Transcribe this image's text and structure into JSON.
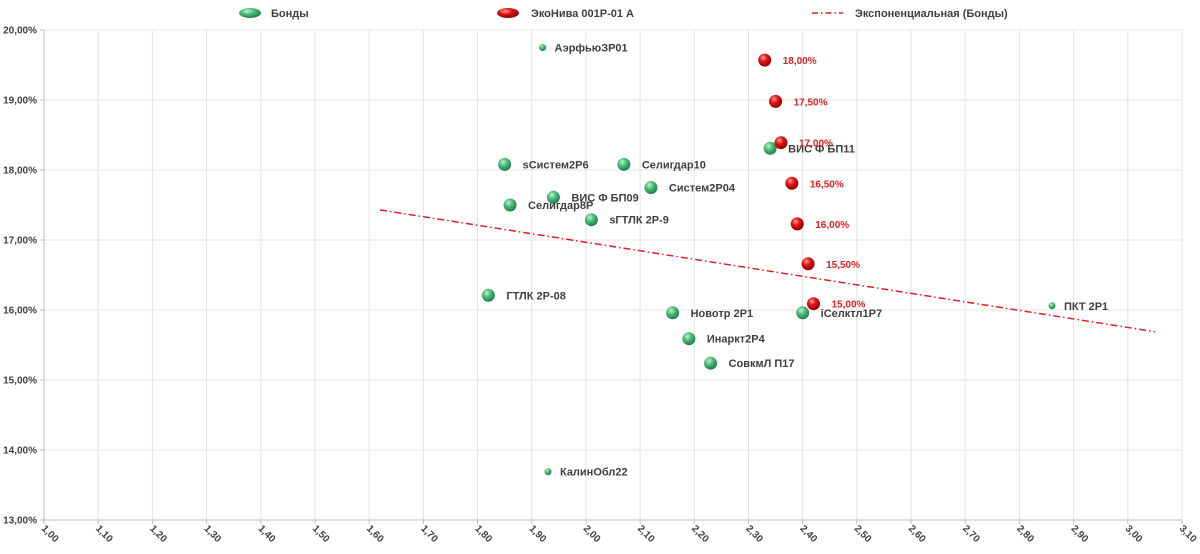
{
  "chart_data": {
    "type": "scatter",
    "x_range": [
      1.0,
      3.1
    ],
    "y_range": [
      13.0,
      20.0
    ],
    "x_ticks": [
      "1,00",
      "1,10",
      "1,20",
      "1,30",
      "1,40",
      "1,50",
      "1,60",
      "1,70",
      "1,80",
      "1,90",
      "2,00",
      "2,10",
      "2,20",
      "2,30",
      "2,40",
      "2,50",
      "2,60",
      "2,70",
      "2,80",
      "2,90",
      "3,00",
      "3,10"
    ],
    "y_ticks": [
      "13,00%",
      "14,00%",
      "15,00%",
      "16,00%",
      "17,00%",
      "18,00%",
      "19,00%",
      "20,00%"
    ],
    "legend": {
      "bonds": "Бонды",
      "ekoniva": "ЭкоНива 001Р-01 А",
      "trend": "Экспоненциальная (Бонды)"
    },
    "colors": {
      "green": "#3fae6a",
      "red": "#d40000",
      "trend": "#e02020"
    },
    "series": [
      {
        "name": "Бонды",
        "points": [
          {
            "x": 1.92,
            "y": 19.75,
            "label": "АэрфьюЗР01",
            "small": true
          },
          {
            "x": 1.85,
            "y": 18.08,
            "label": "sСистем2Р6"
          },
          {
            "x": 2.07,
            "y": 18.08,
            "label": "Селигдар10"
          },
          {
            "x": 2.34,
            "y": 18.31,
            "label": "ВИС Ф БП11"
          },
          {
            "x": 2.12,
            "y": 17.75,
            "label": "Систем2Р04"
          },
          {
            "x": 1.94,
            "y": 17.61,
            "label": "ВИС Ф БП09"
          },
          {
            "x": 1.86,
            "y": 17.5,
            "label": "Селигдар8Р"
          },
          {
            "x": 2.01,
            "y": 17.29,
            "label": "sГТЛК 2Р-9"
          },
          {
            "x": 1.82,
            "y": 16.21,
            "label": "ГТЛК 2Р-08"
          },
          {
            "x": 2.16,
            "y": 15.96,
            "label": "Новотр 2Р1"
          },
          {
            "x": 2.4,
            "y": 15.96,
            "label": "iСелктл1Р7"
          },
          {
            "x": 2.19,
            "y": 15.59,
            "label": "Инаркт2Р4"
          },
          {
            "x": 2.23,
            "y": 15.24,
            "label": "СовкмЛ П17"
          },
          {
            "x": 2.86,
            "y": 16.06,
            "label": "ПКТ 2Р1",
            "small": true
          },
          {
            "x": 1.93,
            "y": 13.69,
            "label": "КалинОбл22",
            "small": true
          }
        ]
      },
      {
        "name": "ЭкоНива 001Р-01 А",
        "points": [
          {
            "x": 2.33,
            "y": 19.57,
            "label": "18,00%"
          },
          {
            "x": 2.35,
            "y": 18.98,
            "label": "17,50%"
          },
          {
            "x": 2.36,
            "y": 18.39,
            "label": "17,00%"
          },
          {
            "x": 2.38,
            "y": 17.81,
            "label": "16,50%"
          },
          {
            "x": 2.39,
            "y": 17.23,
            "label": "16,00%"
          },
          {
            "x": 2.41,
            "y": 16.66,
            "label": "15,50%"
          },
          {
            "x": 2.42,
            "y": 16.09,
            "label": "15,00%"
          }
        ]
      }
    ],
    "trendline": {
      "name": "Экспоненциальная (Бонды)",
      "type": "exponential",
      "x_start": 1.62,
      "y_start": 17.43,
      "x_end": 3.05,
      "y_end": 15.69
    }
  }
}
